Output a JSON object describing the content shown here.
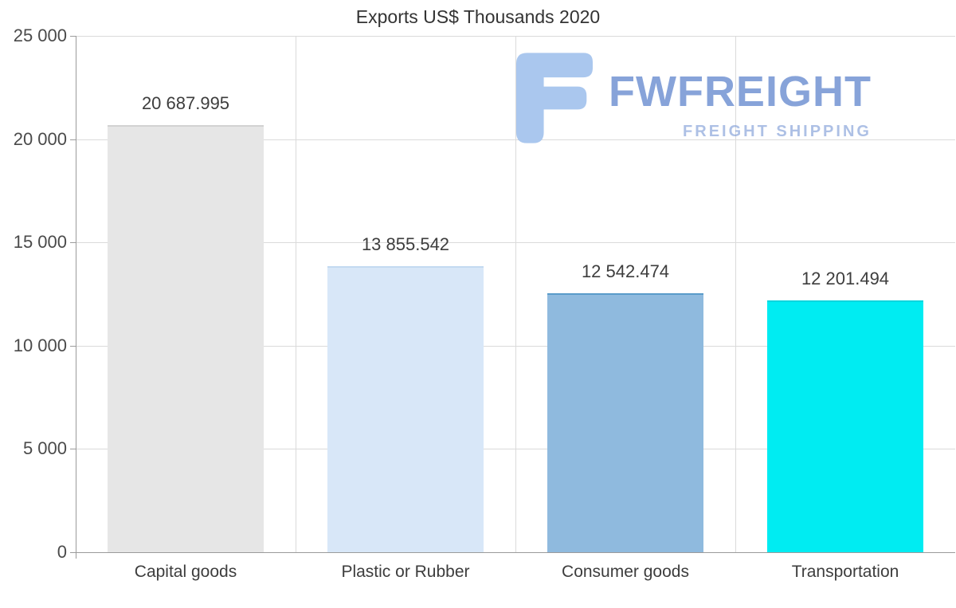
{
  "title": "Exports US$ Thousands 2020",
  "watermark": {
    "brand": "FWFREIGHT",
    "tagline": "FREIGHT SHIPPING",
    "brand_color": "#7a99d5",
    "icon_color": "#aac7ee"
  },
  "chart_data": {
    "type": "bar",
    "title": "Exports US$ Thousands 2020",
    "categories": [
      "Capital goods",
      "Plastic or Rubber",
      "Consumer goods",
      "Transportation"
    ],
    "values": [
      20687.995,
      13855.542,
      12542.474,
      12201.494
    ],
    "value_labels": [
      "20 687.995",
      "13 855.542",
      "12 542.474",
      "12 201.494"
    ],
    "bar_colors": [
      "#e6e6e6",
      "#d8e7f8",
      "#8fbade",
      "#00ecf2"
    ],
    "bar_borders": [
      "#d2d2d2",
      "#c3daf1",
      "#5a9bca",
      "#00d6de"
    ],
    "xlabel": "",
    "ylabel": "",
    "ylim": [
      0,
      25000
    ],
    "ytick_step": 5000,
    "ytick_labels": [
      "0",
      "5 000",
      "10 000",
      "15 000",
      "20 000",
      "25 000"
    ],
    "grid": true,
    "legend": false
  }
}
